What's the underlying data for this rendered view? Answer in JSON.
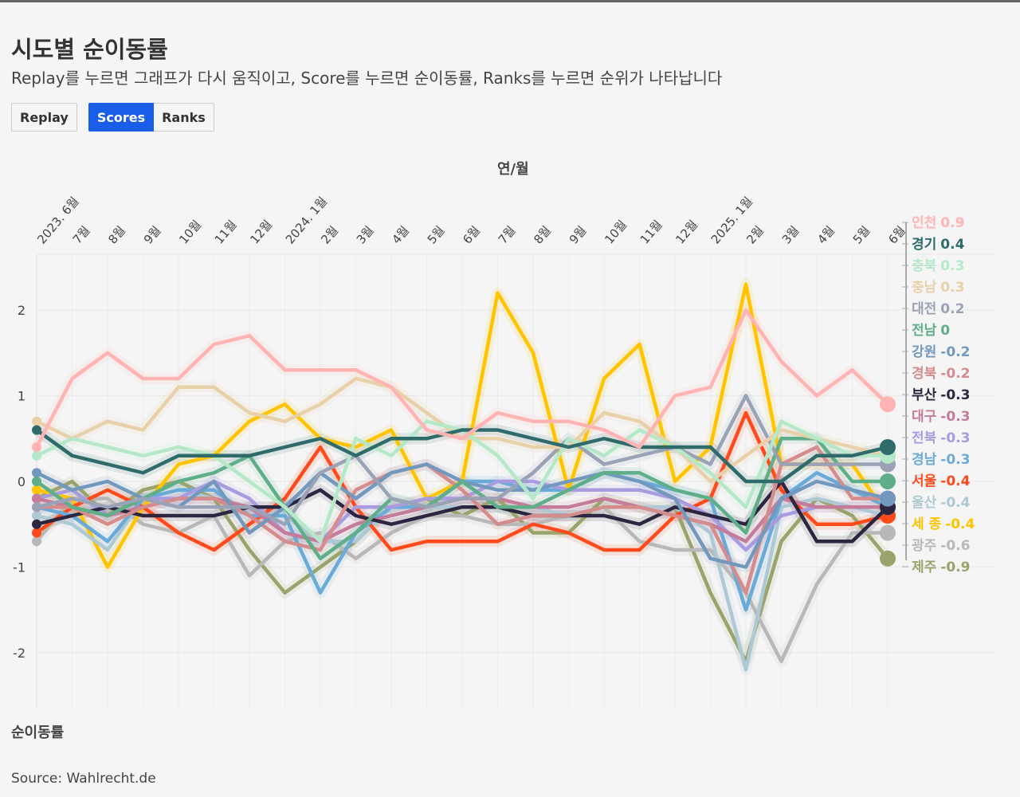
{
  "header": {
    "title": "시도별 순이동률",
    "subtitle": "Replay를 누르면 그래프가 다시 움직이고, Score를 누르면 순이동률, Ranks를 누르면 순위가 나타납니다"
  },
  "controls": {
    "replay": "Replay",
    "scores": "Scores",
    "ranks": "Ranks",
    "active": "Scores"
  },
  "source": "Source: Wahlrecht.de",
  "chart_data": {
    "type": "line",
    "xlabel": "연/월",
    "ylabel": "순이동률",
    "ylim": [
      -2.5,
      2.65
    ],
    "yticks": [
      -2,
      -1,
      0,
      1,
      2
    ],
    "ytick_labels": [
      "-2",
      "-1",
      "0",
      "1",
      "2"
    ],
    "categories": [
      "2023. 6월",
      "7월",
      "8월",
      "9월",
      "10월",
      "11월",
      "12월",
      "2024. 1월",
      "2월",
      "3월",
      "4월",
      "5월",
      "6월",
      "7월",
      "8월",
      "9월",
      "10월",
      "11월",
      "12월",
      "2025. 1월",
      "2월",
      "3월",
      "4월",
      "5월",
      "6월"
    ],
    "series": [
      {
        "name": "인천",
        "label": "0.9",
        "color": "#ffb3b3",
        "values": [
          0.4,
          1.2,
          1.5,
          1.2,
          1.2,
          1.6,
          1.7,
          1.3,
          1.3,
          1.3,
          1.1,
          0.6,
          0.5,
          0.8,
          0.7,
          0.7,
          0.6,
          0.4,
          1.0,
          1.1,
          2.0,
          1.4,
          1.0,
          1.3,
          0.9
        ]
      },
      {
        "name": "경기",
        "label": "0.4",
        "color": "#2f6b6b",
        "values": [
          0.6,
          0.3,
          0.2,
          0.1,
          0.3,
          0.3,
          0.3,
          0.4,
          0.5,
          0.3,
          0.5,
          0.5,
          0.6,
          0.6,
          0.5,
          0.4,
          0.5,
          0.4,
          0.4,
          0.4,
          0.0,
          0.0,
          0.3,
          0.3,
          0.4
        ]
      },
      {
        "name": "충북",
        "label": "0.3",
        "color": "#b5e8c8",
        "values": [
          0.3,
          0.5,
          0.4,
          0.3,
          0.4,
          0.3,
          0.0,
          -0.3,
          -0.7,
          0.5,
          0.3,
          0.7,
          0.6,
          0.3,
          -0.2,
          0.5,
          0.3,
          0.6,
          0.4,
          0.1,
          -0.3,
          0.7,
          0.5,
          0.3,
          0.3
        ]
      },
      {
        "name": "충남",
        "label": "0.3",
        "color": "#e8d0a9",
        "values": [
          0.7,
          0.5,
          0.7,
          0.6,
          1.1,
          1.1,
          0.8,
          0.7,
          0.9,
          1.2,
          1.1,
          0.8,
          0.5,
          0.5,
          0.4,
          0.4,
          0.8,
          0.7,
          0.4,
          0.0,
          0.3,
          0.6,
          0.5,
          0.4,
          0.3
        ]
      },
      {
        "name": "대전",
        "label": "0.2",
        "color": "#9aa3b5",
        "values": [
          -0.3,
          -0.2,
          -0.3,
          -0.2,
          -0.3,
          -0.3,
          -0.3,
          -0.5,
          0.1,
          0.3,
          -0.2,
          -0.3,
          -0.2,
          -0.2,
          0.1,
          0.5,
          0.2,
          0.3,
          0.4,
          0.2,
          1.0,
          0.2,
          0.2,
          0.2,
          0.2
        ]
      },
      {
        "name": "전남",
        "label": "0",
        "color": "#5fae8a",
        "values": [
          0.0,
          -0.3,
          -0.4,
          -0.2,
          0.0,
          0.1,
          0.3,
          -0.3,
          -0.9,
          -0.6,
          -0.2,
          -0.3,
          0.0,
          -0.3,
          -0.3,
          -0.1,
          0.1,
          0.1,
          -0.1,
          -0.2,
          -0.6,
          0.5,
          0.5,
          0.0,
          0.0
        ]
      },
      {
        "name": "강원",
        "label": "-0.2",
        "color": "#7398be",
        "values": [
          0.1,
          -0.1,
          0.0,
          -0.2,
          -0.3,
          0.0,
          -0.6,
          -0.3,
          0.1,
          -0.2,
          0.1,
          0.2,
          0.0,
          -0.1,
          -0.1,
          0.0,
          0.1,
          0.0,
          -0.2,
          -0.9,
          -1.0,
          -0.2,
          0.0,
          -0.1,
          -0.2
        ]
      },
      {
        "name": "경북",
        "label": "-0.2",
        "color": "#d48c8c",
        "values": [
          -0.3,
          -0.3,
          -0.5,
          -0.3,
          -0.2,
          -0.2,
          -0.4,
          -0.7,
          -0.8,
          -0.1,
          0.1,
          0.2,
          -0.1,
          -0.5,
          -0.4,
          -0.4,
          -0.3,
          -0.3,
          -0.4,
          -0.5,
          -1.3,
          0.2,
          0.4,
          -0.2,
          -0.2
        ]
      },
      {
        "name": "부산",
        "label": "-0.3",
        "color": "#2d2640",
        "values": [
          -0.5,
          -0.4,
          -0.3,
          -0.4,
          -0.4,
          -0.4,
          -0.3,
          -0.3,
          -0.1,
          -0.4,
          -0.5,
          -0.4,
          -0.3,
          -0.3,
          -0.4,
          -0.4,
          -0.4,
          -0.5,
          -0.3,
          -0.4,
          -0.5,
          0.0,
          -0.7,
          -0.7,
          -0.3
        ]
      },
      {
        "name": "대구",
        "label": "-0.3",
        "color": "#c57c9a",
        "values": [
          -0.2,
          -0.3,
          -0.4,
          -0.3,
          -0.2,
          -0.2,
          -0.3,
          -0.6,
          -0.7,
          -0.5,
          -0.4,
          -0.3,
          -0.2,
          -0.2,
          -0.3,
          -0.3,
          -0.2,
          -0.3,
          -0.4,
          -0.5,
          -0.7,
          -0.2,
          -0.3,
          -0.3,
          -0.3
        ]
      },
      {
        "name": "전북",
        "label": "-0.3",
        "color": "#a99be0",
        "values": [
          -0.2,
          -0.1,
          -0.4,
          -0.2,
          -0.2,
          0.0,
          -0.2,
          -0.6,
          -0.7,
          -0.3,
          -0.3,
          -0.2,
          -0.2,
          0.0,
          0.0,
          -0.1,
          -0.1,
          -0.1,
          -0.2,
          -0.4,
          -0.8,
          -0.4,
          -0.3,
          -0.3,
          -0.3
        ]
      },
      {
        "name": "경남",
        "label": "-0.3",
        "color": "#6aaad8",
        "values": [
          -0.3,
          -0.4,
          -0.7,
          -0.2,
          -0.1,
          -0.1,
          -0.4,
          -0.4,
          -1.3,
          -0.6,
          -0.3,
          -0.3,
          0.0,
          0.0,
          -0.1,
          -0.1,
          0.1,
          0.0,
          -0.1,
          -0.2,
          -1.5,
          -0.2,
          0.1,
          -0.1,
          -0.3
        ]
      },
      {
        "name": "서울",
        "label": "-0.4",
        "color": "#ff4a1c",
        "values": [
          -0.6,
          -0.3,
          -0.1,
          -0.3,
          -0.6,
          -0.8,
          -0.5,
          -0.2,
          0.4,
          -0.3,
          -0.8,
          -0.7,
          -0.7,
          -0.7,
          -0.5,
          -0.6,
          -0.8,
          -0.8,
          -0.4,
          -0.2,
          0.8,
          -0.1,
          -0.5,
          -0.5,
          -0.4
        ]
      },
      {
        "name": "울산",
        "label": "-0.4",
        "color": "#aec9d6",
        "values": [
          -0.4,
          -0.5,
          -0.8,
          -0.2,
          -0.1,
          -0.2,
          -0.4,
          -0.4,
          -0.7,
          -0.7,
          -0.3,
          -0.3,
          -0.3,
          -0.3,
          -0.3,
          -0.4,
          -0.3,
          -0.3,
          -0.3,
          -0.6,
          -2.2,
          -0.3,
          -0.2,
          -0.3,
          -0.4
        ]
      },
      {
        "name": "세 종",
        "label": "-0.4",
        "color": "#ffc300",
        "values": [
          -0.1,
          -0.2,
          -1.0,
          -0.3,
          0.2,
          0.3,
          0.7,
          0.9,
          0.5,
          0.4,
          0.6,
          -0.2,
          0.0,
          2.2,
          1.5,
          -0.1,
          1.2,
          1.6,
          0.0,
          0.4,
          2.3,
          0.2,
          0.2,
          0.2,
          -0.4
        ]
      },
      {
        "name": "광주",
        "label": "-0.6",
        "color": "#b8b8b8",
        "values": [
          -0.7,
          -0.2,
          -0.2,
          -0.5,
          -0.6,
          -0.4,
          -1.1,
          -0.7,
          -0.6,
          -0.9,
          -0.6,
          -0.4,
          -0.4,
          -0.5,
          -0.5,
          -0.4,
          -0.3,
          -0.7,
          -0.8,
          -0.8,
          -1.3,
          -2.1,
          -1.2,
          -0.6,
          -0.6
        ]
      },
      {
        "name": "제주",
        "label": "-0.9",
        "color": "#9aa36b",
        "values": [
          -0.2,
          0.0,
          -0.4,
          -0.1,
          0.0,
          -0.2,
          -0.8,
          -1.3,
          -1.0,
          -0.7,
          -0.3,
          -0.2,
          -0.4,
          -0.2,
          -0.6,
          -0.6,
          -0.2,
          -0.3,
          -0.3,
          -1.3,
          -2.1,
          -0.7,
          -0.2,
          -0.4,
          -0.9
        ]
      }
    ],
    "legend": "right",
    "grid": true
  }
}
